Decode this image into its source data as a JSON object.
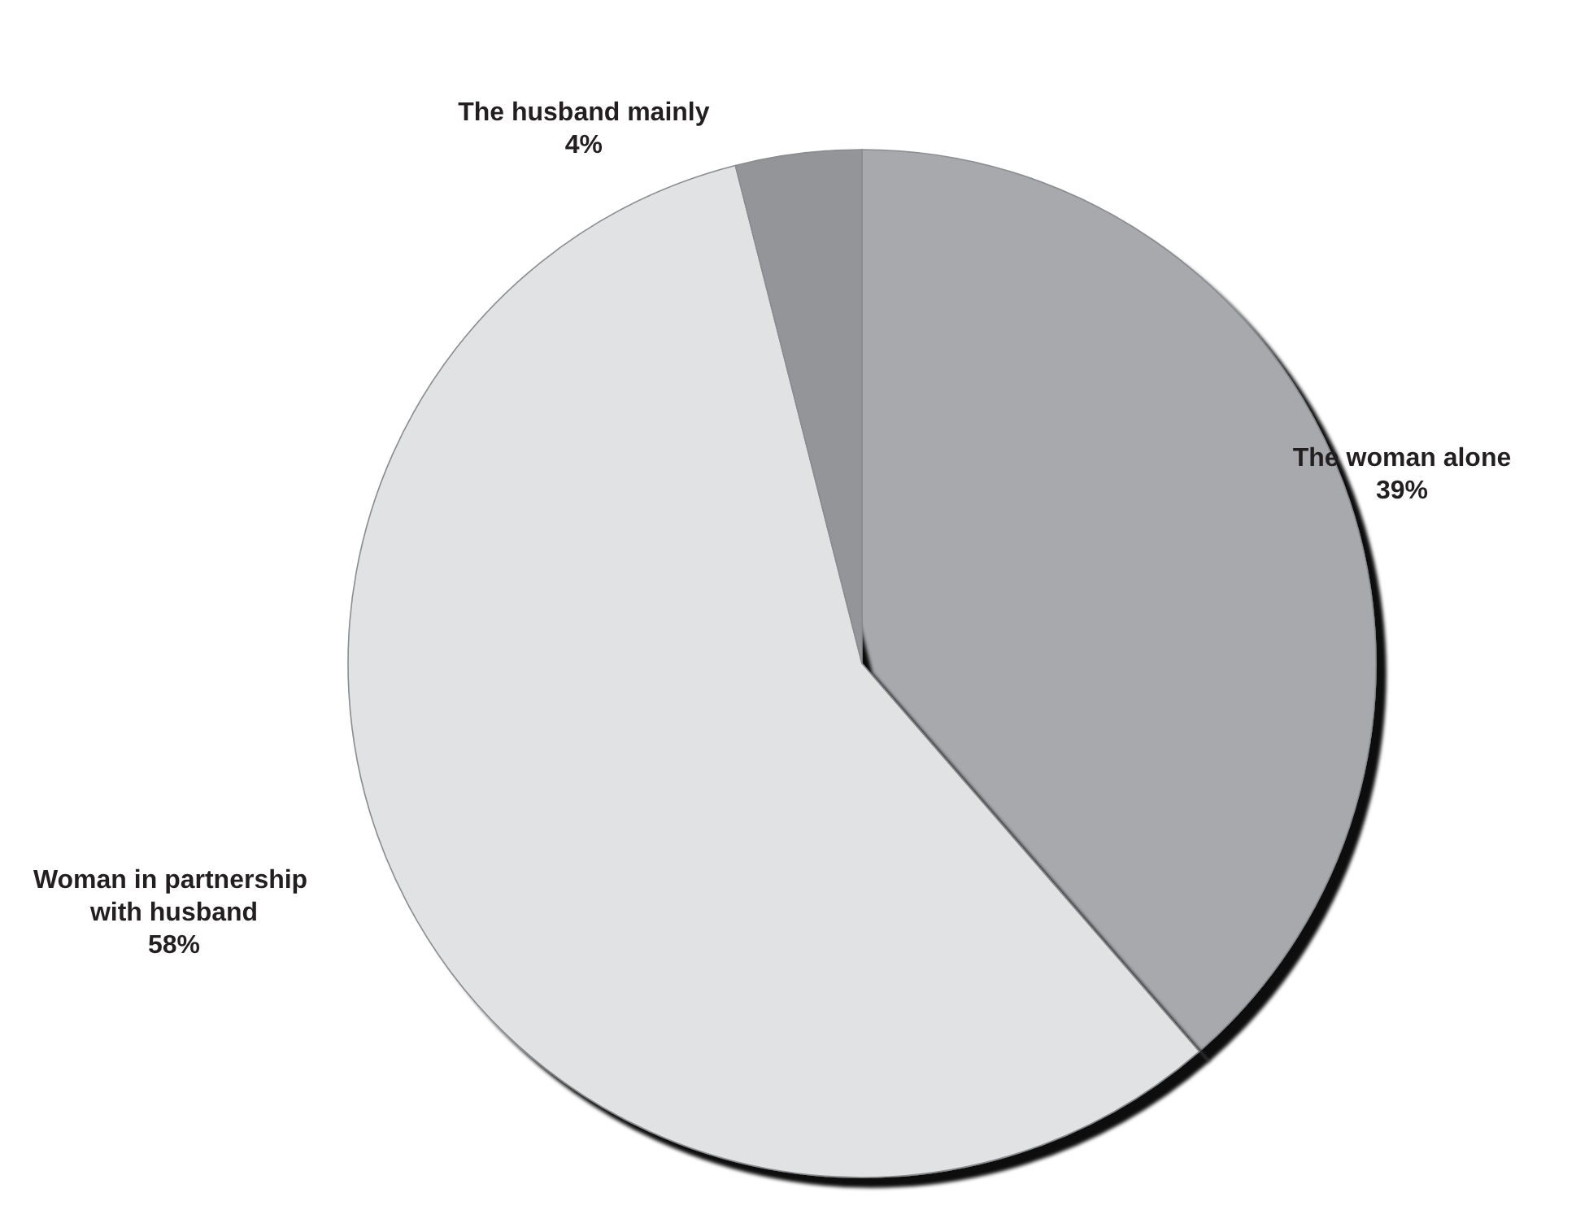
{
  "chart_data": {
    "type": "pie",
    "categories": [
      "The woman alone",
      "Woman in partnership with husband",
      "The husband mainly"
    ],
    "values": [
      39,
      58,
      4
    ],
    "value_labels": [
      "39%",
      "58%",
      "4%"
    ],
    "colors": [
      "#a7a9ac",
      "#e1e2e4",
      "#939598"
    ],
    "legend": false
  }
}
